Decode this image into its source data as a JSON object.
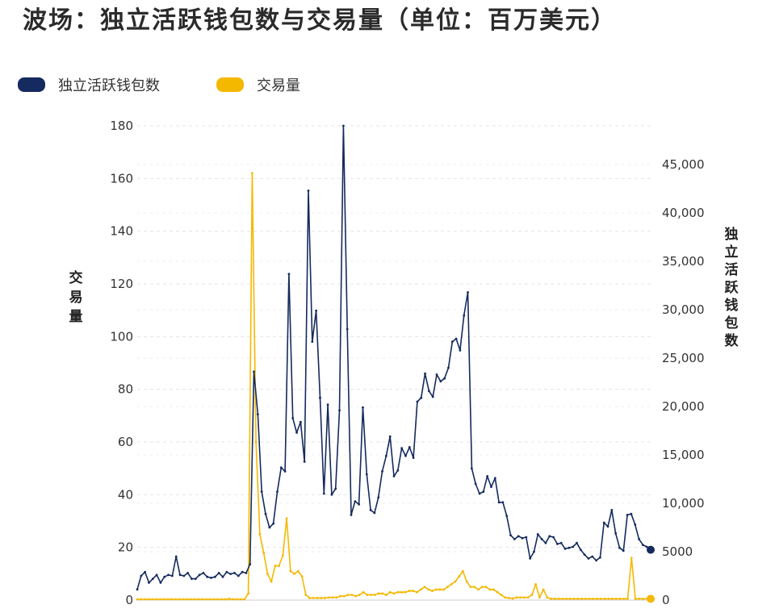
{
  "title": "波场：独立活跃钱包数与交易量（单位：百万美元）",
  "legend": [
    {
      "label": "独立活跃钱包数",
      "color": "#152a5e"
    },
    {
      "label": "交易量",
      "color": "#f5b800"
    }
  ],
  "chart_data": {
    "type": "line",
    "title": "波场：独立活跃钱包数与交易量（单位：百万美元）",
    "y_left_label": "交易量",
    "y_right_label": "独立活跃钱包数",
    "y_left_ticks": [
      "0",
      "20",
      "40",
      "60",
      "80",
      "100",
      "120",
      "140",
      "160",
      "180"
    ],
    "y_right_ticks": [
      "0",
      "5000",
      "10,000",
      "15,000",
      "20,000",
      "25,000",
      "30,000",
      "35,000",
      "40,000",
      "45,000"
    ],
    "ylim_left": [
      0,
      180
    ],
    "ylim_right": [
      0,
      49000
    ],
    "grid": true,
    "legend_position": "top-left",
    "series": [
      {
        "name": "独立活跃钱包数",
        "axis": "right",
        "color": "#152a5e",
        "values": [
          1100,
          2500,
          2900,
          1800,
          2200,
          2600,
          1800,
          2400,
          2600,
          2500,
          4500,
          2600,
          2500,
          2800,
          2200,
          2200,
          2600,
          2800,
          2400,
          2300,
          2400,
          2800,
          2400,
          2900,
          2700,
          2800,
          2500,
          2900,
          2800,
          3700,
          23600,
          19200,
          11200,
          8900,
          7500,
          7900,
          11200,
          13700,
          13300,
          33700,
          18800,
          17300,
          18400,
          14300,
          42300,
          26700,
          29900,
          20900,
          11000,
          20200,
          10900,
          11500,
          19600,
          49000,
          28000,
          8800,
          10200,
          9900,
          19900,
          13000,
          9300,
          9000,
          10600,
          13300,
          14900,
          16900,
          12800,
          13400,
          15700,
          14900,
          15800,
          14700,
          20500,
          20900,
          23400,
          21600,
          21000,
          23300,
          22600,
          22900,
          24000,
          26700,
          27000,
          25800,
          29400,
          31800,
          13600,
          12000,
          11000,
          11200,
          12800,
          11700,
          12600,
          10100,
          10100,
          8700,
          6700,
          6300,
          6600,
          6400,
          6500,
          4300,
          5000,
          6800,
          6300,
          5900,
          6600,
          6500,
          5800,
          5900,
          5300,
          5400,
          5500,
          5900,
          5200,
          4700,
          4300,
          4500,
          4100,
          4400,
          8000,
          7600,
          9300,
          6900,
          5400,
          5100,
          8800,
          8900,
          7800,
          6300,
          5700,
          5500,
          5200
        ]
      },
      {
        "name": "交易量",
        "axis": "left",
        "color": "#f5b800",
        "values": [
          0.3,
          0.3,
          0.3,
          0.3,
          0.3,
          0.3,
          0.3,
          0.3,
          0.3,
          0.3,
          0.3,
          0.3,
          0.3,
          0.3,
          0.3,
          0.3,
          0.3,
          0.3,
          0.3,
          0.3,
          0.3,
          0.3,
          0.3,
          0.3,
          0.5,
          0.3,
          0.3,
          0.3,
          0.3,
          2.5,
          162,
          60,
          25,
          18,
          10,
          7,
          13,
          13,
          17,
          31,
          11,
          10,
          11,
          9,
          2,
          0.8,
          0.8,
          0.8,
          0.8,
          0.8,
          1,
          1,
          1,
          1.5,
          1.5,
          2,
          2,
          1.5,
          2,
          3,
          2,
          2,
          2,
          2.5,
          2.5,
          2,
          3,
          2.5,
          3,
          3,
          3,
          3.5,
          3.5,
          3,
          4,
          5,
          4,
          3.5,
          4,
          4,
          4,
          5,
          6,
          7,
          9,
          11,
          7,
          5,
          5,
          4,
          5,
          5,
          4,
          4,
          3,
          2,
          1,
          0.8,
          0.6,
          1,
          1,
          1,
          1,
          2,
          6,
          1,
          4,
          1,
          0.5,
          0.5,
          0.5,
          0.5,
          0.5,
          0.5,
          0.5,
          0.5,
          0.5,
          0.5,
          0.5,
          0.5,
          0.5,
          0.5,
          0.5,
          0.5,
          0.5,
          0.5,
          0.5,
          0.5,
          0.5,
          16,
          0.5,
          0.5,
          0.5,
          0.5,
          0.5
        ]
      }
    ]
  }
}
